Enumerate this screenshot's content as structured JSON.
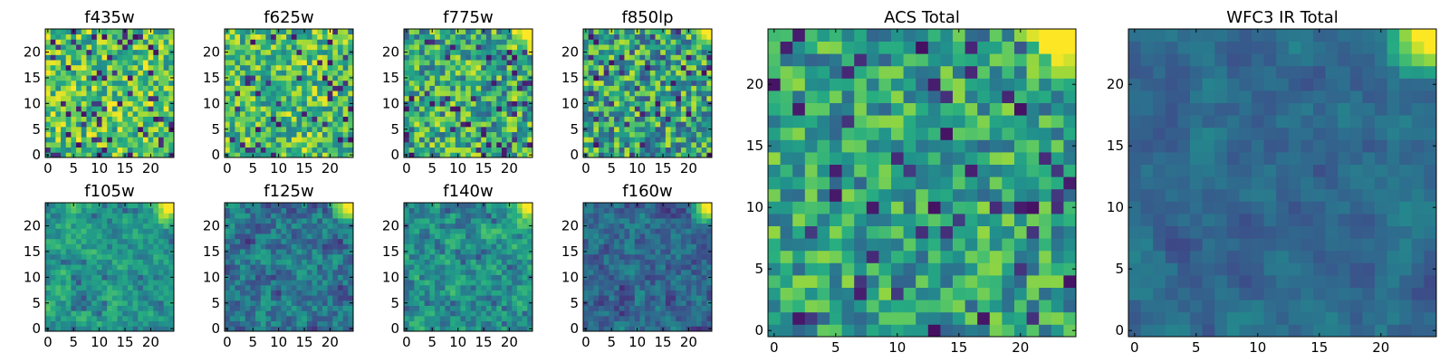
{
  "chart_data": [
    {
      "id": "f435w",
      "type": "heatmap",
      "title": "f435w",
      "grid_size": 25,
      "xlim": [
        0,
        24
      ],
      "ylim": [
        0,
        24
      ],
      "xticks": [
        0,
        5,
        10,
        15,
        20
      ],
      "yticks": [
        0,
        5,
        10,
        15,
        20
      ],
      "colormap": "viridis",
      "pattern": {
        "seed": 11,
        "base": 0.72,
        "noise": 0.28,
        "hot_corner": 0.0,
        "lowspots": 0.09,
        "smooth": 0
      }
    },
    {
      "id": "f625w",
      "type": "heatmap",
      "title": "f625w",
      "grid_size": 25,
      "xlim": [
        0,
        24
      ],
      "ylim": [
        0,
        24
      ],
      "xticks": [
        0,
        5,
        10,
        15,
        20
      ],
      "yticks": [
        0,
        5,
        10,
        15,
        20
      ],
      "colormap": "viridis",
      "pattern": {
        "seed": 23,
        "base": 0.7,
        "noise": 0.28,
        "hot_corner": 0.25,
        "lowspots": 0.06,
        "smooth": 0
      }
    },
    {
      "id": "f775w",
      "type": "heatmap",
      "title": "f775w",
      "grid_size": 25,
      "xlim": [
        0,
        24
      ],
      "ylim": [
        0,
        24
      ],
      "xticks": [
        0,
        5,
        10,
        15,
        20
      ],
      "yticks": [
        0,
        5,
        10,
        15,
        20
      ],
      "colormap": "viridis",
      "pattern": {
        "seed": 37,
        "base": 0.62,
        "noise": 0.32,
        "hot_corner": 1.0,
        "lowspots": 0.07,
        "smooth": 0
      }
    },
    {
      "id": "f850lp",
      "type": "heatmap",
      "title": "f850lp",
      "grid_size": 25,
      "xlim": [
        0,
        24
      ],
      "ylim": [
        0,
        24
      ],
      "xticks": [
        0,
        5,
        10,
        15,
        20
      ],
      "yticks": [
        0,
        5,
        10,
        15,
        20
      ],
      "colormap": "viridis",
      "pattern": {
        "seed": 41,
        "base": 0.58,
        "noise": 0.34,
        "hot_corner": 1.0,
        "lowspots": 0.08,
        "smooth": 0
      }
    },
    {
      "id": "f105w",
      "type": "heatmap",
      "title": "f105w",
      "grid_size": 25,
      "xlim": [
        0,
        24
      ],
      "ylim": [
        0,
        24
      ],
      "xticks": [
        0,
        5,
        10,
        15,
        20
      ],
      "yticks": [
        0,
        5,
        10,
        15,
        20
      ],
      "colormap": "viridis",
      "pattern": {
        "seed": 53,
        "base": 0.55,
        "noise": 0.26,
        "hot_corner": 1.0,
        "lowspots": 0.05,
        "smooth": 1
      }
    },
    {
      "id": "f125w",
      "type": "heatmap",
      "title": "f125w",
      "grid_size": 25,
      "xlim": [
        0,
        24
      ],
      "ylim": [
        0,
        24
      ],
      "xticks": [
        0,
        5,
        10,
        15,
        20
      ],
      "yticks": [
        0,
        5,
        10,
        15,
        20
      ],
      "colormap": "viridis",
      "pattern": {
        "seed": 67,
        "base": 0.42,
        "noise": 0.28,
        "hot_corner": 1.0,
        "lowspots": 0.06,
        "smooth": 1
      }
    },
    {
      "id": "f140w",
      "type": "heatmap",
      "title": "f140w",
      "grid_size": 25,
      "xlim": [
        0,
        24
      ],
      "ylim": [
        0,
        24
      ],
      "xticks": [
        0,
        5,
        10,
        15,
        20
      ],
      "yticks": [
        0,
        5,
        10,
        15,
        20
      ],
      "colormap": "viridis",
      "pattern": {
        "seed": 71,
        "base": 0.52,
        "noise": 0.3,
        "hot_corner": 1.0,
        "lowspots": 0.06,
        "smooth": 1
      }
    },
    {
      "id": "f160w",
      "type": "heatmap",
      "title": "f160w",
      "grid_size": 25,
      "xlim": [
        0,
        24
      ],
      "ylim": [
        0,
        24
      ],
      "xticks": [
        0,
        5,
        10,
        15,
        20
      ],
      "yticks": [
        0,
        5,
        10,
        15,
        20
      ],
      "colormap": "viridis",
      "pattern": {
        "seed": 83,
        "base": 0.35,
        "noise": 0.24,
        "hot_corner": 1.0,
        "lowspots": 0.05,
        "smooth": 1
      }
    },
    {
      "id": "acs_total",
      "type": "heatmap",
      "title": "ACS Total",
      "grid_size": 25,
      "xlim": [
        0,
        24
      ],
      "ylim": [
        0,
        24
      ],
      "xticks": [
        0,
        5,
        10,
        15,
        20
      ],
      "yticks": [
        0,
        5,
        10,
        15,
        20
      ],
      "colormap": "viridis",
      "pattern": {
        "seed": 97,
        "base": 0.58,
        "noise": 0.26,
        "hot_corner": 1.0,
        "lowspots": 0.07,
        "smooth": 0
      }
    },
    {
      "id": "wfc3_ir_total",
      "type": "heatmap",
      "title": "WFC3 IR Total",
      "grid_size": 25,
      "xlim": [
        0,
        24
      ],
      "ylim": [
        0,
        24
      ],
      "xticks": [
        0,
        5,
        10,
        15,
        20
      ],
      "yticks": [
        0,
        5,
        10,
        15,
        20
      ],
      "colormap": "viridis",
      "pattern": {
        "seed": 101,
        "base": 0.36,
        "noise": 0.22,
        "hot_corner": 1.0,
        "lowspots": 0.04,
        "smooth": 2
      }
    }
  ]
}
